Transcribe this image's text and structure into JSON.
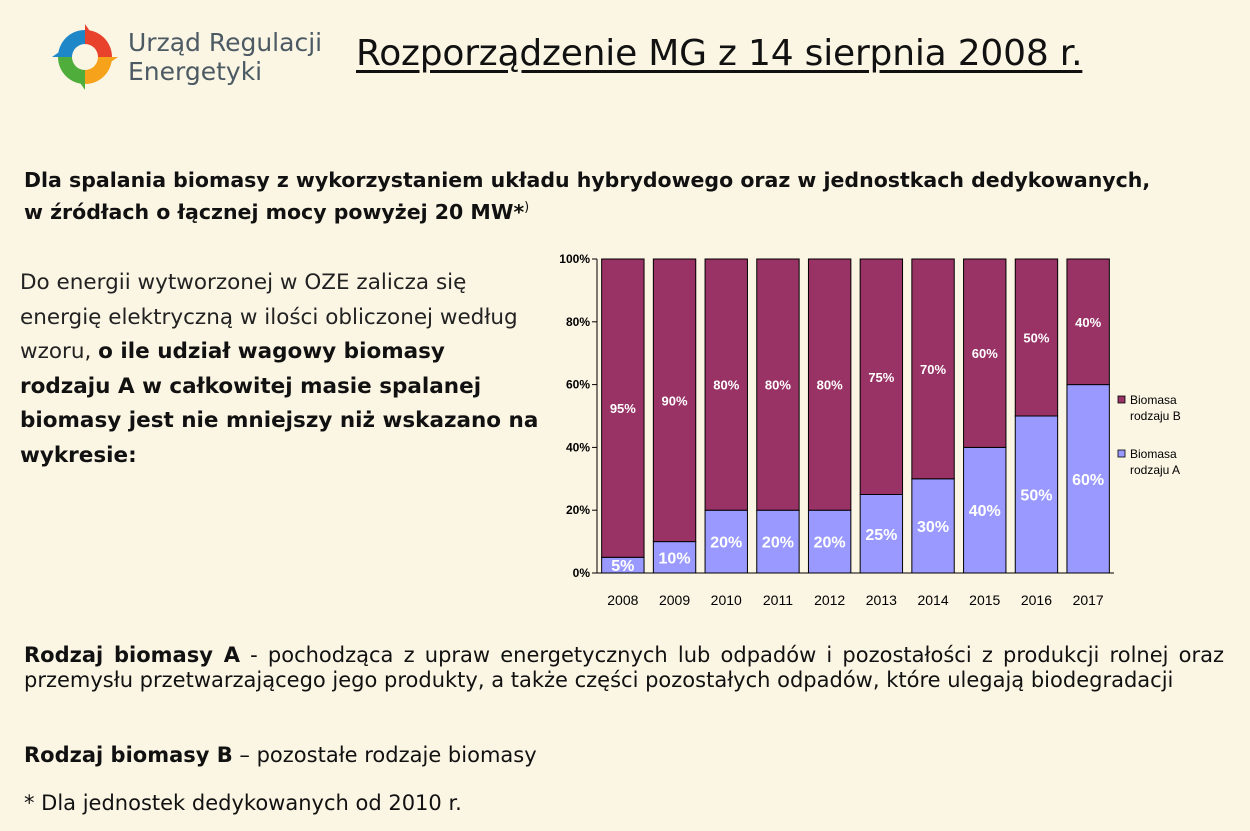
{
  "header": {
    "logo_line1": "Urząd Regulacji",
    "logo_line2": "Energetyki",
    "title": "Rozporządzenie MG z 14 sierpnia 2008 r."
  },
  "heading": {
    "line1": "Dla spalania biomasy z wykorzystaniem układu hybrydowego oraz w jednostkach dedykowanych,",
    "line2": "w źródłach o łącznej mocy powyżej 20 MW*",
    "sup": ")"
  },
  "description": {
    "normal": "Do energii wytworzonej w OZE zalicza się energię elektryczną w ilości obliczonej według wzoru, ",
    "bold": "o ile udział wagowy biomasy rodzaju A w całkowitej masie spalanej biomasy jest nie mniejszy niż wskazano na wykresie:"
  },
  "definitions": {
    "a_bold": "Rodzaj biomasy A",
    "a_text": " - pochodząca z upraw energetycznych lub odpadów i pozostałości z produkcji rolnej oraz przemysłu przetwarzającego jego produkty, a także części pozostałych odpadów, które ulegają biodegradacji",
    "b_bold": "Rodzaj biomasy B",
    "b_text": " – pozostałe rodzaje biomasy",
    "footnote": "* Dla jednostek dedykowanych od 2010 r."
  },
  "colors": {
    "series_a": "#9999ff",
    "series_b": "#993366",
    "background": "#fbf5e4"
  },
  "chart_data": {
    "type": "bar",
    "stacked": true,
    "categories": [
      "2008",
      "2009",
      "2010",
      "2011",
      "2012",
      "2013",
      "2014",
      "2015",
      "2016",
      "2017"
    ],
    "series": [
      {
        "name": "Biomasa rodzaju A",
        "values": [
          5,
          10,
          20,
          20,
          20,
          25,
          30,
          40,
          50,
          60
        ],
        "labels": [
          "5%",
          "10%",
          "20%",
          "20%",
          "20%",
          "25%",
          "30%",
          "40%",
          "50%",
          "60%"
        ]
      },
      {
        "name": "Biomasa rodzaju B",
        "values": [
          95,
          90,
          80,
          80,
          80,
          75,
          70,
          60,
          50,
          40
        ],
        "labels": [
          "95%",
          "90%",
          "80%",
          "80%",
          "80%",
          "75%",
          "70%",
          "60%",
          "50%",
          "40%"
        ]
      }
    ],
    "legend": [
      {
        "line1": "Biomasa",
        "line2": "rodzaju B"
      },
      {
        "line1": "Biomasa",
        "line2": "rodzaju A"
      }
    ],
    "y_ticks": [
      "0%",
      "20%",
      "40%",
      "60%",
      "80%",
      "100%"
    ],
    "ylim": [
      0,
      100
    ],
    "legend_position": "right",
    "grid": false
  }
}
